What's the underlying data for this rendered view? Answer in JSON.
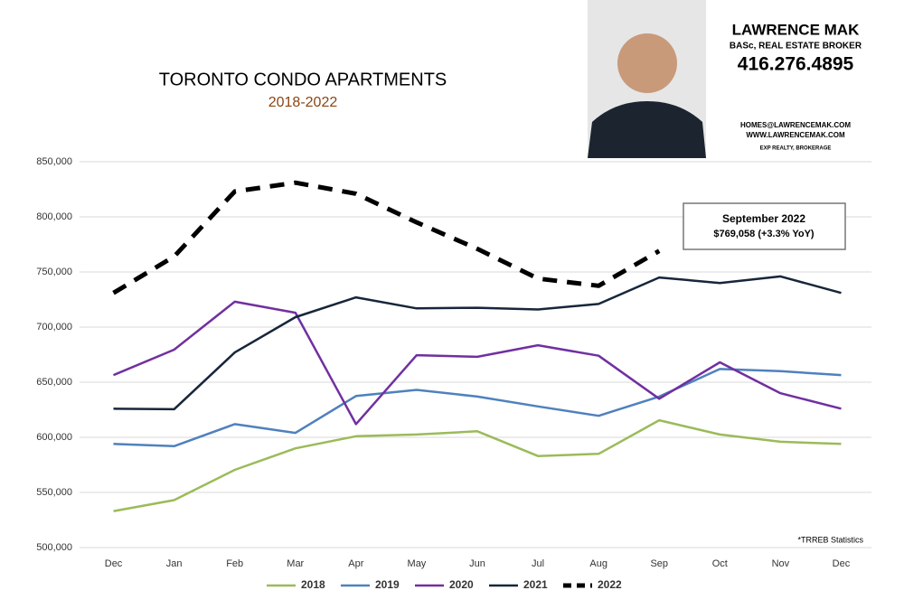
{
  "chart_data": {
    "type": "line",
    "title": "TORONTO CONDO APARTMENTS",
    "subtitle": "2018-2022",
    "categories": [
      "Dec",
      "Jan",
      "Feb",
      "Mar",
      "Apr",
      "May",
      "Jun",
      "Jul",
      "Aug",
      "Sep",
      "Oct",
      "Nov",
      "Dec"
    ],
    "series": [
      {
        "name": "2018",
        "color": "#9bbb59",
        "style": "solid",
        "values": [
          533000,
          543000,
          570500,
          590000,
          601000,
          602500,
          605500,
          583000,
          585000,
          615500,
          602500,
          596000,
          594000
        ]
      },
      {
        "name": "2019",
        "color": "#4f81bd",
        "style": "solid",
        "values": [
          594000,
          592000,
          612000,
          604000,
          637500,
          643000,
          637000,
          628000,
          619500,
          637000,
          662000,
          660000,
          656500
        ]
      },
      {
        "name": "2020",
        "color": "#7030a0",
        "style": "solid",
        "values": [
          656500,
          679500,
          723000,
          713000,
          612000,
          674500,
          673000,
          683500,
          674000,
          635000,
          668000,
          640000,
          626000
        ]
      },
      {
        "name": "2021",
        "color": "#17263a",
        "style": "solid",
        "values": [
          626000,
          625500,
          677000,
          709000,
          727000,
          717000,
          717500,
          716000,
          721000,
          745000,
          740000,
          746000,
          731000
        ]
      },
      {
        "name": "2022",
        "color": "#000000",
        "style": "dashed",
        "values": [
          731000,
          764000,
          823000,
          831000,
          821000,
          795000,
          771000,
          744000,
          737500,
          769058,
          null,
          null,
          null
        ]
      }
    ],
    "ylim": [
      500000,
      850000
    ],
    "yticks": [
      {
        "value": 500000,
        "label": "500,000"
      },
      {
        "value": 550000,
        "label": "550,000"
      },
      {
        "value": 600000,
        "label": "600,000"
      },
      {
        "value": 650000,
        "label": "650,000"
      },
      {
        "value": 700000,
        "label": "700,000"
      },
      {
        "value": 750000,
        "label": "750,000"
      },
      {
        "value": 800000,
        "label": "800,000"
      },
      {
        "value": 850000,
        "label": "850,000"
      }
    ],
    "grid": true,
    "legend": "bottom",
    "annotation": {
      "title": "September 2022",
      "text": "$769,058  (+3.3%  YoY)"
    },
    "source": "*TRREB Statistics"
  },
  "agent": {
    "name": "LAWRENCE MAK",
    "credentials": "BASc, REAL ESTATE BROKER",
    "phone": "416.276.4895",
    "email": "HOMES@LAWRENCEMAK.COM",
    "website": "WWW.LAWRENCEMAK.COM",
    "brokerage": "EXP REALTY, BROKERAGE"
  }
}
